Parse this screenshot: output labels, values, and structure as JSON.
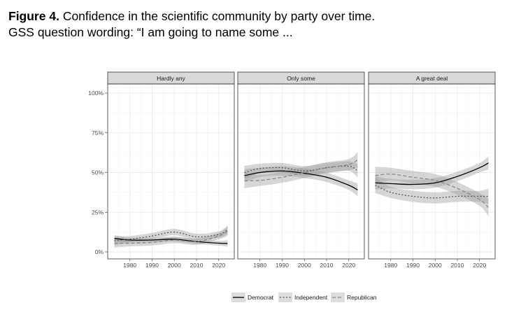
{
  "caption": {
    "label": "Figure 4.",
    "title": "Confidence in the scientific community by party over time.",
    "subtitle": "GSS question wording: “I am going to name some ..."
  },
  "chart_data": {
    "type": "line",
    "ylim": [
      0,
      100
    ],
    "xlim": [
      1970,
      2027
    ],
    "yticks": [
      0,
      25,
      50,
      75,
      100
    ],
    "ytick_labels": [
      "0%",
      "25%",
      "50%",
      "75%",
      "100%"
    ],
    "xticks": [
      1980,
      1990,
      2000,
      2010,
      2020
    ],
    "grid": true,
    "legend_position": "bottom",
    "x": [
      1973,
      1980,
      1990,
      2000,
      2010,
      2020,
      2024
    ],
    "series_styles": [
      {
        "name": "Democrat",
        "dash": "solid",
        "color": "#000000"
      },
      {
        "name": "Independent",
        "dash": "dotted",
        "color": "#555555"
      },
      {
        "name": "Republican",
        "dash": "dashed",
        "color": "#888888"
      }
    ],
    "panels": [
      {
        "title": "Hardly any",
        "series": [
          {
            "name": "Democrat",
            "values": [
              8.5,
              7.5,
              7.5,
              8,
              6.5,
              5.5,
              5.3
            ],
            "ci": 1.5
          },
          {
            "name": "Independent",
            "values": [
              7,
              8,
              10,
              12.5,
              9.5,
              11,
              14
            ],
            "ci": 2
          },
          {
            "name": "Republican",
            "values": [
              5.5,
              5.5,
              6,
              7.5,
              6.5,
              10,
              13
            ],
            "ci": 2
          }
        ]
      },
      {
        "title": "Only some",
        "series": [
          {
            "name": "Democrat",
            "values": [
              48,
              50,
              51,
              49.5,
              47,
              42,
              39
            ],
            "ci": 3
          },
          {
            "name": "Independent",
            "values": [
              50,
              52.5,
              53,
              51,
              53,
              54,
              51
            ],
            "ci": 3
          },
          {
            "name": "Republican",
            "values": [
              45,
              45,
              47,
              50,
              53,
              55,
              58
            ],
            "ci": 3.5
          }
        ]
      },
      {
        "title": "A great deal",
        "series": [
          {
            "name": "Democrat",
            "values": [
              43.5,
              43,
              42.5,
              43.5,
              47.5,
              53,
              56
            ],
            "ci": 3
          },
          {
            "name": "Independent",
            "values": [
              42,
              37.5,
              35,
              34,
              35,
              35,
              35
            ],
            "ci": 3.5
          },
          {
            "name": "Republican",
            "values": [
              48,
              49,
              47,
              45,
              40,
              33,
              28
            ],
            "ci": 4
          }
        ]
      }
    ]
  }
}
